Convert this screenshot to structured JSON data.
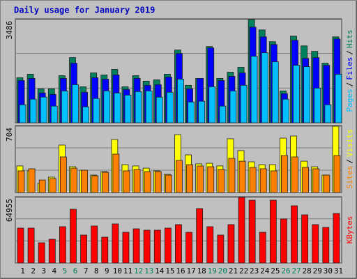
{
  "chart_data": [
    {
      "type": "bar",
      "title": "Daily usage for January 2019",
      "ylim": [
        0,
        3486
      ],
      "yticks": [
        3486
      ],
      "legend_separator": "/",
      "series": [
        {
          "name": "Hits",
          "color": "#00805c",
          "values": [
            1521,
            1638,
            1147,
            1147,
            1591,
            2200,
            1217,
            1685,
            1615,
            1802,
            1217,
            1591,
            1404,
            1451,
            1638,
            2457,
            1264,
            1498,
            2574,
            1498,
            1708,
            1872,
            3486,
            3136,
            2738,
            1076,
            2925,
            2597,
            2410,
            2012,
            2902
          ]
        },
        {
          "name": "Files",
          "color": "#0000ff",
          "values": [
            1427,
            1498,
            1006,
            959,
            1498,
            2012,
            1030,
            1521,
            1474,
            1615,
            1123,
            1498,
            1264,
            1287,
            1544,
            2340,
            1147,
            1498,
            2527,
            1427,
            1568,
            1685,
            3229,
            2902,
            2644,
            983,
            2785,
            2176,
            2200,
            1942,
            2831
          ]
        },
        {
          "name": "Pages",
          "color": "#00c0ff",
          "values": [
            608,
            796,
            866,
            562,
            1076,
            1287,
            538,
            819,
            1076,
            1006,
            936,
            1053,
            1076,
            866,
            1030,
            1474,
            702,
            725,
            1217,
            562,
            1076,
            1264,
            2246,
            2363,
            2059,
            796,
            1942,
            1895,
            1170,
            608,
            1638
          ]
        }
      ]
    },
    {
      "type": "bar",
      "ylim": [
        0,
        704
      ],
      "yticks": [
        704
      ],
      "legend_separator": "/",
      "series": [
        {
          "name": "Visits",
          "color": "#ffff00",
          "values": [
            282,
            230,
            96,
            163,
            504,
            274,
            237,
            185,
            222,
            563,
            296,
            282,
            259,
            230,
            193,
            615,
            400,
            304,
            311,
            282,
            571,
            445,
            326,
            296,
            296,
            578,
            600,
            333,
            274,
            185,
            704
          ]
        },
        {
          "name": "Sites",
          "color": "#ff8000",
          "values": [
            230,
            252,
            133,
            148,
            378,
            259,
            237,
            178,
            215,
            408,
            230,
            245,
            222,
            222,
            185,
            341,
            296,
            282,
            274,
            245,
            363,
            333,
            267,
            252,
            230,
            393,
            378,
            267,
            252,
            185,
            393
          ]
        }
      ]
    },
    {
      "type": "bar",
      "ylim": [
        0,
        64955
      ],
      "yticks": [
        64955
      ],
      "categories": [
        "1",
        "2",
        "3",
        "4",
        "5",
        "6",
        "7",
        "8",
        "9",
        "10",
        "11",
        "12",
        "13",
        "14",
        "15",
        "16",
        "17",
        "18",
        "19",
        "20",
        "21",
        "22",
        "23",
        "24",
        "25",
        "26",
        "27",
        "28",
        "29",
        "30",
        "31"
      ],
      "category_colors": [
        "#000000",
        "#000000",
        "#000000",
        "#000000",
        "#00805c",
        "#00805c",
        "#000000",
        "#000000",
        "#000000",
        "#000000",
        "#000000",
        "#00805c",
        "#00805c",
        "#000000",
        "#000000",
        "#000000",
        "#000000",
        "#000000",
        "#00805c",
        "#00805c",
        "#000000",
        "#000000",
        "#000000",
        "#000000",
        "#000000",
        "#00805c",
        "#00805c",
        "#000000",
        "#000000",
        "#000000",
        "#000000"
      ],
      "series": [
        {
          "name": "KBytes",
          "color": "#ff0000",
          "values": [
            34550,
            34550,
            20039,
            23494,
            35932,
            53207,
            27640,
            36623,
            25567,
            38696,
            30404,
            33859,
            32477,
            32477,
            34550,
            38005,
            30404,
            53898,
            35932,
            27640,
            38005,
            64955,
            62190,
            30404,
            62190,
            43533,
            56662,
            47679,
            38005,
            35241,
            49061
          ]
        }
      ]
    }
  ]
}
